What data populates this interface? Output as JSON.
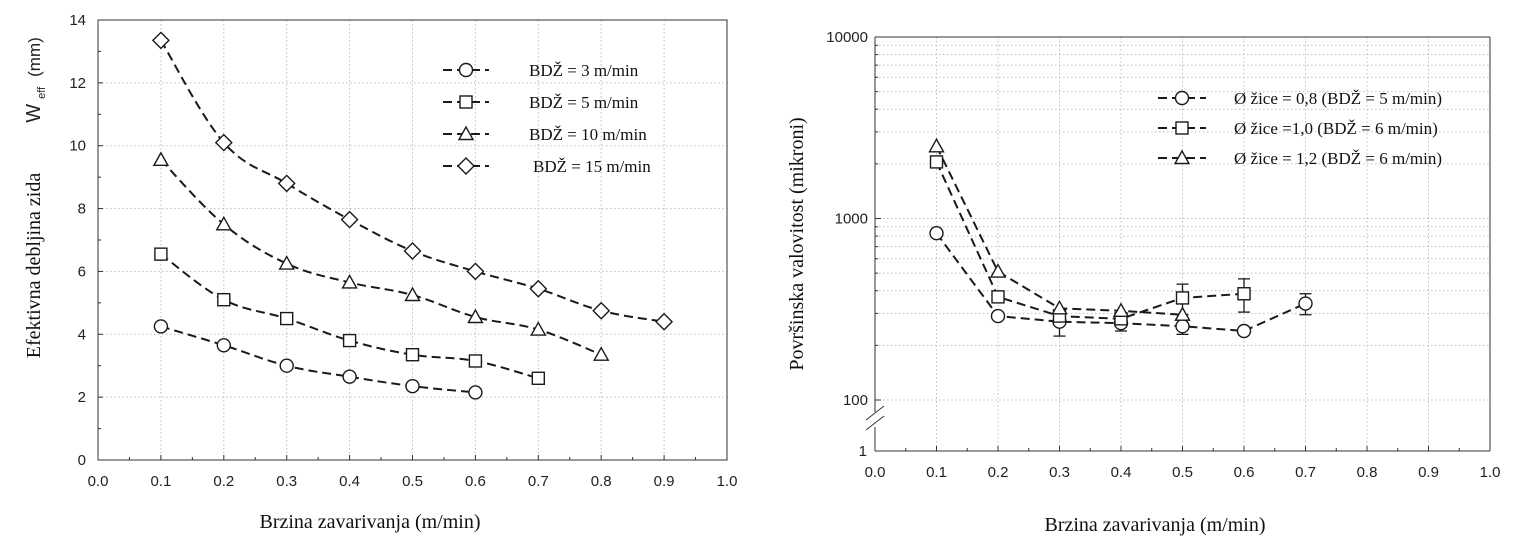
{
  "chart_data": [
    {
      "type": "line",
      "title": "",
      "xlabel": "Brzina zavarivanja (m/min)",
      "ylabel_main": "Efektivna debljina zida",
      "ylabel_symbol": "W",
      "ylabel_subscript": "eff",
      "ylabel_unit": "(mm)",
      "xlim": [
        0.0,
        1.0
      ],
      "ylim": [
        0,
        14
      ],
      "xticks": [
        "0.0",
        "0.1",
        "0.2",
        "0.3",
        "0.4",
        "0.5",
        "0.6",
        "0.7",
        "0.8",
        "0.9",
        "1.0"
      ],
      "yticks": [
        "0",
        "2",
        "4",
        "6",
        "8",
        "10",
        "12",
        "14"
      ],
      "grid": true,
      "legend_position": "top-right",
      "series": [
        {
          "name": "BDŽ = 3 m/min",
          "marker": "circle",
          "x": [
            0.1,
            0.2,
            0.3,
            0.4,
            0.5,
            0.6
          ],
          "y": [
            4.25,
            3.65,
            3.0,
            2.65,
            2.35,
            2.15
          ]
        },
        {
          "name": "BDŽ = 5 m/min",
          "marker": "square",
          "x": [
            0.1,
            0.2,
            0.3,
            0.4,
            0.5,
            0.6,
            0.7
          ],
          "y": [
            6.55,
            5.1,
            4.5,
            3.8,
            3.35,
            3.15,
            2.6
          ]
        },
        {
          "name": "BDŽ = 10 m/min",
          "marker": "triangle",
          "x": [
            0.1,
            0.2,
            0.3,
            0.4,
            0.5,
            0.6,
            0.7,
            0.8
          ],
          "y": [
            9.55,
            7.5,
            6.25,
            5.65,
            5.25,
            4.55,
            4.15,
            3.35
          ]
        },
        {
          "name": "BDŽ = 15 m/min",
          "marker": "diamond",
          "x": [
            0.1,
            0.2,
            0.3,
            0.4,
            0.5,
            0.6,
            0.7,
            0.8,
            0.9
          ],
          "y": [
            13.35,
            10.1,
            8.8,
            7.65,
            6.65,
            6.0,
            5.45,
            4.75,
            4.4
          ]
        }
      ]
    },
    {
      "type": "line",
      "title": "",
      "xlabel": "Brzina zavarivanja (m/min)",
      "ylabel": "Površinska valovitost (mikroni)",
      "yscale": "log",
      "xlim": [
        0.0,
        1.0
      ],
      "ylim": [
        100,
        10000
      ],
      "axis_break_label": "1",
      "xticks": [
        "0.0",
        "0.1",
        "0.2",
        "0.3",
        "0.4",
        "0.5",
        "0.6",
        "0.7",
        "0.8",
        "0.9",
        "1.0"
      ],
      "yticks": [
        "100",
        "1000",
        "10000"
      ],
      "grid": true,
      "legend_position": "top-right",
      "series": [
        {
          "name": "Ø žice = 0,8 (BDŽ = 5 m/min)",
          "marker": "circle",
          "x": [
            0.1,
            0.2,
            0.3,
            0.4,
            0.5,
            0.6,
            0.7
          ],
          "y": [
            830,
            290,
            270,
            265,
            255,
            240,
            340
          ],
          "err": [
            0,
            0,
            45,
            25,
            25,
            10,
            45
          ]
        },
        {
          "name": "Ø žice =1,0 (BDŽ = 6 m/min)",
          "marker": "square",
          "x": [
            0.1,
            0.2,
            0.3,
            0.4,
            0.5,
            0.6
          ],
          "y": [
            2050,
            370,
            290,
            280,
            365,
            385
          ],
          "err": [
            0,
            0,
            0,
            0,
            70,
            80
          ]
        },
        {
          "name": "Ø žice = 1,2 (BDŽ = 6 m/min)",
          "marker": "triangle",
          "x": [
            0.1,
            0.2,
            0.3,
            0.4,
            0.5
          ],
          "y": [
            2500,
            510,
            320,
            310,
            295
          ],
          "err": [
            0,
            0,
            0,
            0,
            0
          ]
        }
      ]
    }
  ]
}
